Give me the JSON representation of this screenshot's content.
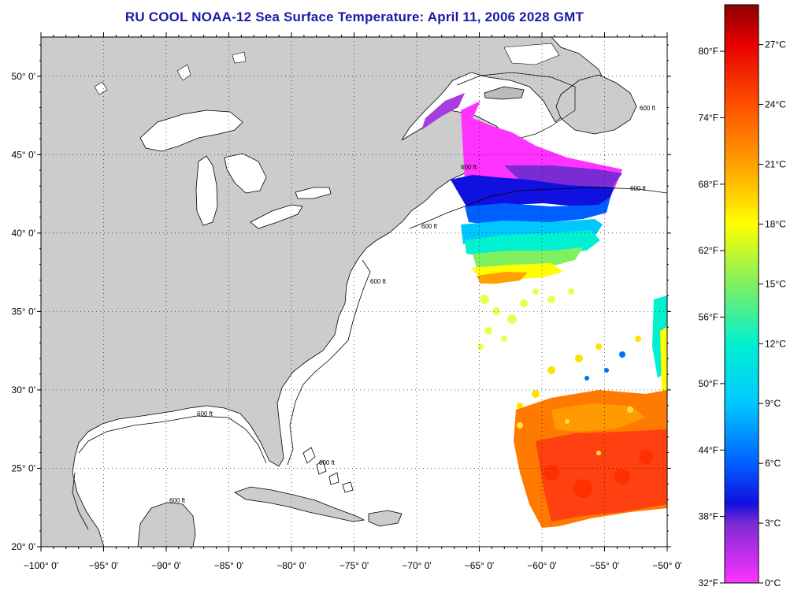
{
  "title": "RU COOL  NOAA-12  Sea Surface Temperature:  April 11, 2006 2028 GMT",
  "map": {
    "lon_range": [
      -100,
      -50
    ],
    "lat_range": [
      20,
      52.5
    ],
    "lat_ticks": [
      {
        "value": 50,
        "label": "50° 0'"
      },
      {
        "value": 45,
        "label": "45° 0'"
      },
      {
        "value": 40,
        "label": "40° 0'"
      },
      {
        "value": 35,
        "label": "35° 0'"
      },
      {
        "value": 30,
        "label": "30° 0'"
      },
      {
        "value": 25,
        "label": "25° 0'"
      },
      {
        "value": 20,
        "label": "20° 0'"
      }
    ],
    "lon_ticks": [
      {
        "value": -100,
        "label": "−100° 0'"
      },
      {
        "value": -95,
        "label": "−95° 0'"
      },
      {
        "value": -90,
        "label": "−90° 0'"
      },
      {
        "value": -85,
        "label": "−85° 0'"
      },
      {
        "value": -80,
        "label": "−80° 0'"
      },
      {
        "value": -75,
        "label": "−75° 0'"
      },
      {
        "value": -70,
        "label": "−70° 0'"
      },
      {
        "value": -65,
        "label": "−65° 0'"
      },
      {
        "value": -60,
        "label": "−60° 0'"
      },
      {
        "value": -55,
        "label": "−55° 0'"
      },
      {
        "value": -50,
        "label": "−50° 0'"
      }
    ],
    "contour_label": "600 ft",
    "land_color": "#cccccc",
    "water_color": "#ffffff",
    "grid": true
  },
  "colorbar": {
    "range_c": [
      0,
      29
    ],
    "f_labels": [
      "80°F",
      "74°F",
      "68°F",
      "62°F",
      "56°F",
      "50°F",
      "44°F",
      "38°F",
      "32°F"
    ],
    "c_labels": [
      "27°C",
      "24°C",
      "21°C",
      "18°C",
      "15°C",
      "12°C",
      "9°C",
      "6°C",
      "3°C",
      "0°C"
    ],
    "stops": [
      {
        "c": 0,
        "color": "#ff33ff"
      },
      {
        "c": 3,
        "color": "#7b2bd4"
      },
      {
        "c": 4,
        "color": "#1010e0"
      },
      {
        "c": 6,
        "color": "#0060ff"
      },
      {
        "c": 9,
        "color": "#00c8ff"
      },
      {
        "c": 12,
        "color": "#00f0d0"
      },
      {
        "c": 15,
        "color": "#80f060"
      },
      {
        "c": 18,
        "color": "#ffff00"
      },
      {
        "c": 21,
        "color": "#ffa000"
      },
      {
        "c": 24,
        "color": "#ff5000"
      },
      {
        "c": 27,
        "color": "#e80000"
      },
      {
        "c": 29,
        "color": "#8b0000"
      }
    ]
  }
}
